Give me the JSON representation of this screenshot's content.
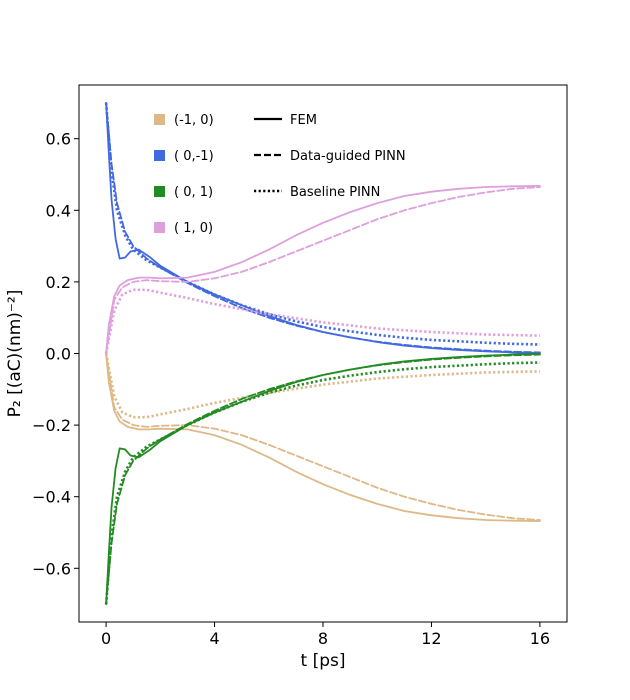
{
  "chart_data": {
    "type": "line",
    "title": "",
    "xlabel": "t [ps]",
    "ylabel": "P₂ [(aC)(nm)⁻²]",
    "xlim": [
      -1.0,
      17.0
    ],
    "ylim": [
      -0.75,
      0.75
    ],
    "xticks": [
      0,
      4,
      8,
      12,
      16
    ],
    "xtick_labels": [
      "0",
      "4",
      "8",
      "12",
      "16"
    ],
    "yticks": [
      -0.6,
      -0.4,
      -0.2,
      0.0,
      0.2,
      0.4,
      0.6
    ],
    "ytick_labels": [
      "−0.6",
      "−0.4",
      "−0.2",
      "0.0",
      "0.2",
      "0.4",
      "0.6"
    ],
    "legend_location": "upper-left",
    "color_legend": [
      {
        "label": "(-1, 0)",
        "color": "#deb887"
      },
      {
        "label": "( 0,-1)",
        "color": "#4169e1"
      },
      {
        "label": "( 0, 1)",
        "color": "#228b22"
      },
      {
        "label": "( 1, 0)",
        "color": "#dda0dd"
      }
    ],
    "style_legend": [
      {
        "label": "FEM",
        "style": "solid"
      },
      {
        "label": "Data-guided PINN",
        "style": "dashed"
      },
      {
        "label": "Baseline PINN",
        "style": "dotted"
      }
    ],
    "series": [
      {
        "name": "(-1, 0) FEM",
        "color": "#deb887",
        "style": "solid",
        "x": [
          0,
          0.1,
          0.3,
          0.5,
          0.8,
          1.2,
          1.6,
          2,
          3,
          4,
          5,
          6,
          7,
          8,
          9,
          10,
          11,
          12,
          13,
          14,
          15,
          16
        ],
        "y": [
          0,
          -0.08,
          -0.16,
          -0.19,
          -0.205,
          -0.212,
          -0.212,
          -0.21,
          -0.212,
          -0.228,
          -0.255,
          -0.29,
          -0.33,
          -0.365,
          -0.395,
          -0.42,
          -0.44,
          -0.452,
          -0.46,
          -0.465,
          -0.467,
          -0.468
        ]
      },
      {
        "name": "(-1, 0) Data-guided PINN",
        "color": "#deb887",
        "style": "dashed",
        "x": [
          0,
          0.3,
          0.6,
          1,
          1.5,
          2,
          3,
          4,
          5,
          6,
          7,
          8,
          9,
          10,
          11,
          12,
          13,
          14,
          15,
          16
        ],
        "y": [
          0,
          -0.15,
          -0.185,
          -0.2,
          -0.205,
          -0.202,
          -0.2,
          -0.21,
          -0.228,
          -0.255,
          -0.285,
          -0.315,
          -0.345,
          -0.375,
          -0.4,
          -0.42,
          -0.437,
          -0.45,
          -0.46,
          -0.465
        ]
      },
      {
        "name": "(-1, 0) Baseline PINN",
        "color": "#deb887",
        "style": "dotted",
        "x": [
          0,
          0.3,
          0.6,
          1,
          1.5,
          2,
          3,
          4,
          6,
          8,
          10,
          12,
          14,
          16
        ],
        "y": [
          0,
          -0.12,
          -0.165,
          -0.178,
          -0.178,
          -0.17,
          -0.155,
          -0.138,
          -0.11,
          -0.087,
          -0.07,
          -0.06,
          -0.053,
          -0.05
        ]
      },
      {
        "name": "( 0,-1) FEM",
        "color": "#4169e1",
        "style": "solid",
        "x": [
          0,
          0.1,
          0.2,
          0.35,
          0.5,
          0.7,
          0.9,
          1.2,
          1.6,
          2,
          3,
          4,
          5,
          6,
          7,
          8,
          9,
          10,
          11,
          12,
          13,
          14,
          15,
          16
        ],
        "y": [
          0.7,
          0.56,
          0.43,
          0.32,
          0.265,
          0.268,
          0.285,
          0.29,
          0.27,
          0.245,
          0.2,
          0.165,
          0.135,
          0.105,
          0.08,
          0.06,
          0.045,
          0.032,
          0.022,
          0.015,
          0.01,
          0.006,
          0.003,
          0.001
        ]
      },
      {
        "name": "( 0,-1) Data-guided PINN",
        "color": "#4169e1",
        "style": "dashed",
        "x": [
          0,
          0.2,
          0.4,
          0.7,
          1,
          1.5,
          2,
          3,
          4,
          5,
          6,
          7,
          8,
          9,
          10,
          11,
          12,
          13,
          14,
          15,
          16
        ],
        "y": [
          0.7,
          0.53,
          0.42,
          0.34,
          0.3,
          0.265,
          0.24,
          0.197,
          0.16,
          0.127,
          0.1,
          0.078,
          0.06,
          0.045,
          0.033,
          0.024,
          0.017,
          0.012,
          0.008,
          0.005,
          0.003
        ]
      },
      {
        "name": "( 0,-1) Baseline PINN",
        "color": "#4169e1",
        "style": "dotted",
        "x": [
          0,
          0.2,
          0.4,
          0.7,
          1,
          1.5,
          2,
          3,
          4,
          5,
          6,
          7,
          8,
          9,
          10,
          11,
          12,
          13,
          14,
          15,
          16
        ],
        "y": [
          0.7,
          0.51,
          0.4,
          0.33,
          0.29,
          0.26,
          0.24,
          0.2,
          0.165,
          0.135,
          0.11,
          0.09,
          0.074,
          0.062,
          0.052,
          0.044,
          0.038,
          0.034,
          0.03,
          0.027,
          0.025
        ]
      },
      {
        "name": "( 0, 1) FEM",
        "color": "#228b22",
        "style": "solid",
        "x": [
          0,
          0.1,
          0.2,
          0.35,
          0.5,
          0.7,
          0.9,
          1.2,
          1.6,
          2,
          3,
          4,
          5,
          6,
          7,
          8,
          9,
          10,
          11,
          12,
          13,
          14,
          15,
          16
        ],
        "y": [
          -0.7,
          -0.56,
          -0.43,
          -0.32,
          -0.265,
          -0.268,
          -0.285,
          -0.29,
          -0.27,
          -0.245,
          -0.2,
          -0.165,
          -0.135,
          -0.105,
          -0.08,
          -0.06,
          -0.045,
          -0.032,
          -0.022,
          -0.015,
          -0.01,
          -0.006,
          -0.003,
          -0.001
        ]
      },
      {
        "name": "( 0, 1) Data-guided PINN",
        "color": "#228b22",
        "style": "dashed",
        "x": [
          0,
          0.2,
          0.4,
          0.7,
          1,
          1.5,
          2,
          3,
          4,
          5,
          6,
          7,
          8,
          9,
          10,
          11,
          12,
          13,
          14,
          15,
          16
        ],
        "y": [
          -0.7,
          -0.53,
          -0.42,
          -0.34,
          -0.3,
          -0.265,
          -0.24,
          -0.197,
          -0.16,
          -0.127,
          -0.1,
          -0.078,
          -0.06,
          -0.045,
          -0.033,
          -0.024,
          -0.017,
          -0.012,
          -0.008,
          -0.005,
          -0.003
        ]
      },
      {
        "name": "( 0, 1) Baseline PINN",
        "color": "#228b22",
        "style": "dotted",
        "x": [
          0,
          0.2,
          0.4,
          0.7,
          1,
          1.5,
          2,
          3,
          4,
          5,
          6,
          7,
          8,
          9,
          10,
          11,
          12,
          13,
          14,
          15,
          16
        ],
        "y": [
          -0.7,
          -0.51,
          -0.4,
          -0.33,
          -0.29,
          -0.26,
          -0.24,
          -0.2,
          -0.165,
          -0.135,
          -0.11,
          -0.09,
          -0.074,
          -0.062,
          -0.052,
          -0.044,
          -0.038,
          -0.034,
          -0.03,
          -0.027,
          -0.025
        ]
      },
      {
        "name": "( 1, 0) FEM",
        "color": "#dda0dd",
        "style": "solid",
        "x": [
          0,
          0.1,
          0.3,
          0.5,
          0.8,
          1.2,
          1.6,
          2,
          3,
          4,
          5,
          6,
          7,
          8,
          9,
          10,
          11,
          12,
          13,
          14,
          15,
          16
        ],
        "y": [
          0,
          0.08,
          0.16,
          0.19,
          0.205,
          0.212,
          0.212,
          0.21,
          0.212,
          0.228,
          0.255,
          0.29,
          0.33,
          0.365,
          0.395,
          0.42,
          0.44,
          0.452,
          0.46,
          0.465,
          0.467,
          0.468
        ]
      },
      {
        "name": "( 1, 0) Data-guided PINN",
        "color": "#dda0dd",
        "style": "dashed",
        "x": [
          0,
          0.3,
          0.6,
          1,
          1.5,
          2,
          3,
          4,
          5,
          6,
          7,
          8,
          9,
          10,
          11,
          12,
          13,
          14,
          15,
          16
        ],
        "y": [
          0,
          0.15,
          0.185,
          0.2,
          0.205,
          0.202,
          0.2,
          0.21,
          0.228,
          0.255,
          0.285,
          0.315,
          0.345,
          0.375,
          0.4,
          0.42,
          0.437,
          0.45,
          0.46,
          0.465
        ]
      },
      {
        "name": "( 1, 0) Baseline PINN",
        "color": "#dda0dd",
        "style": "dotted",
        "x": [
          0,
          0.3,
          0.6,
          1,
          1.5,
          2,
          3,
          4,
          6,
          8,
          10,
          12,
          14,
          16
        ],
        "y": [
          0,
          0.12,
          0.165,
          0.178,
          0.178,
          0.17,
          0.155,
          0.138,
          0.11,
          0.087,
          0.07,
          0.06,
          0.053,
          0.05
        ]
      }
    ]
  }
}
